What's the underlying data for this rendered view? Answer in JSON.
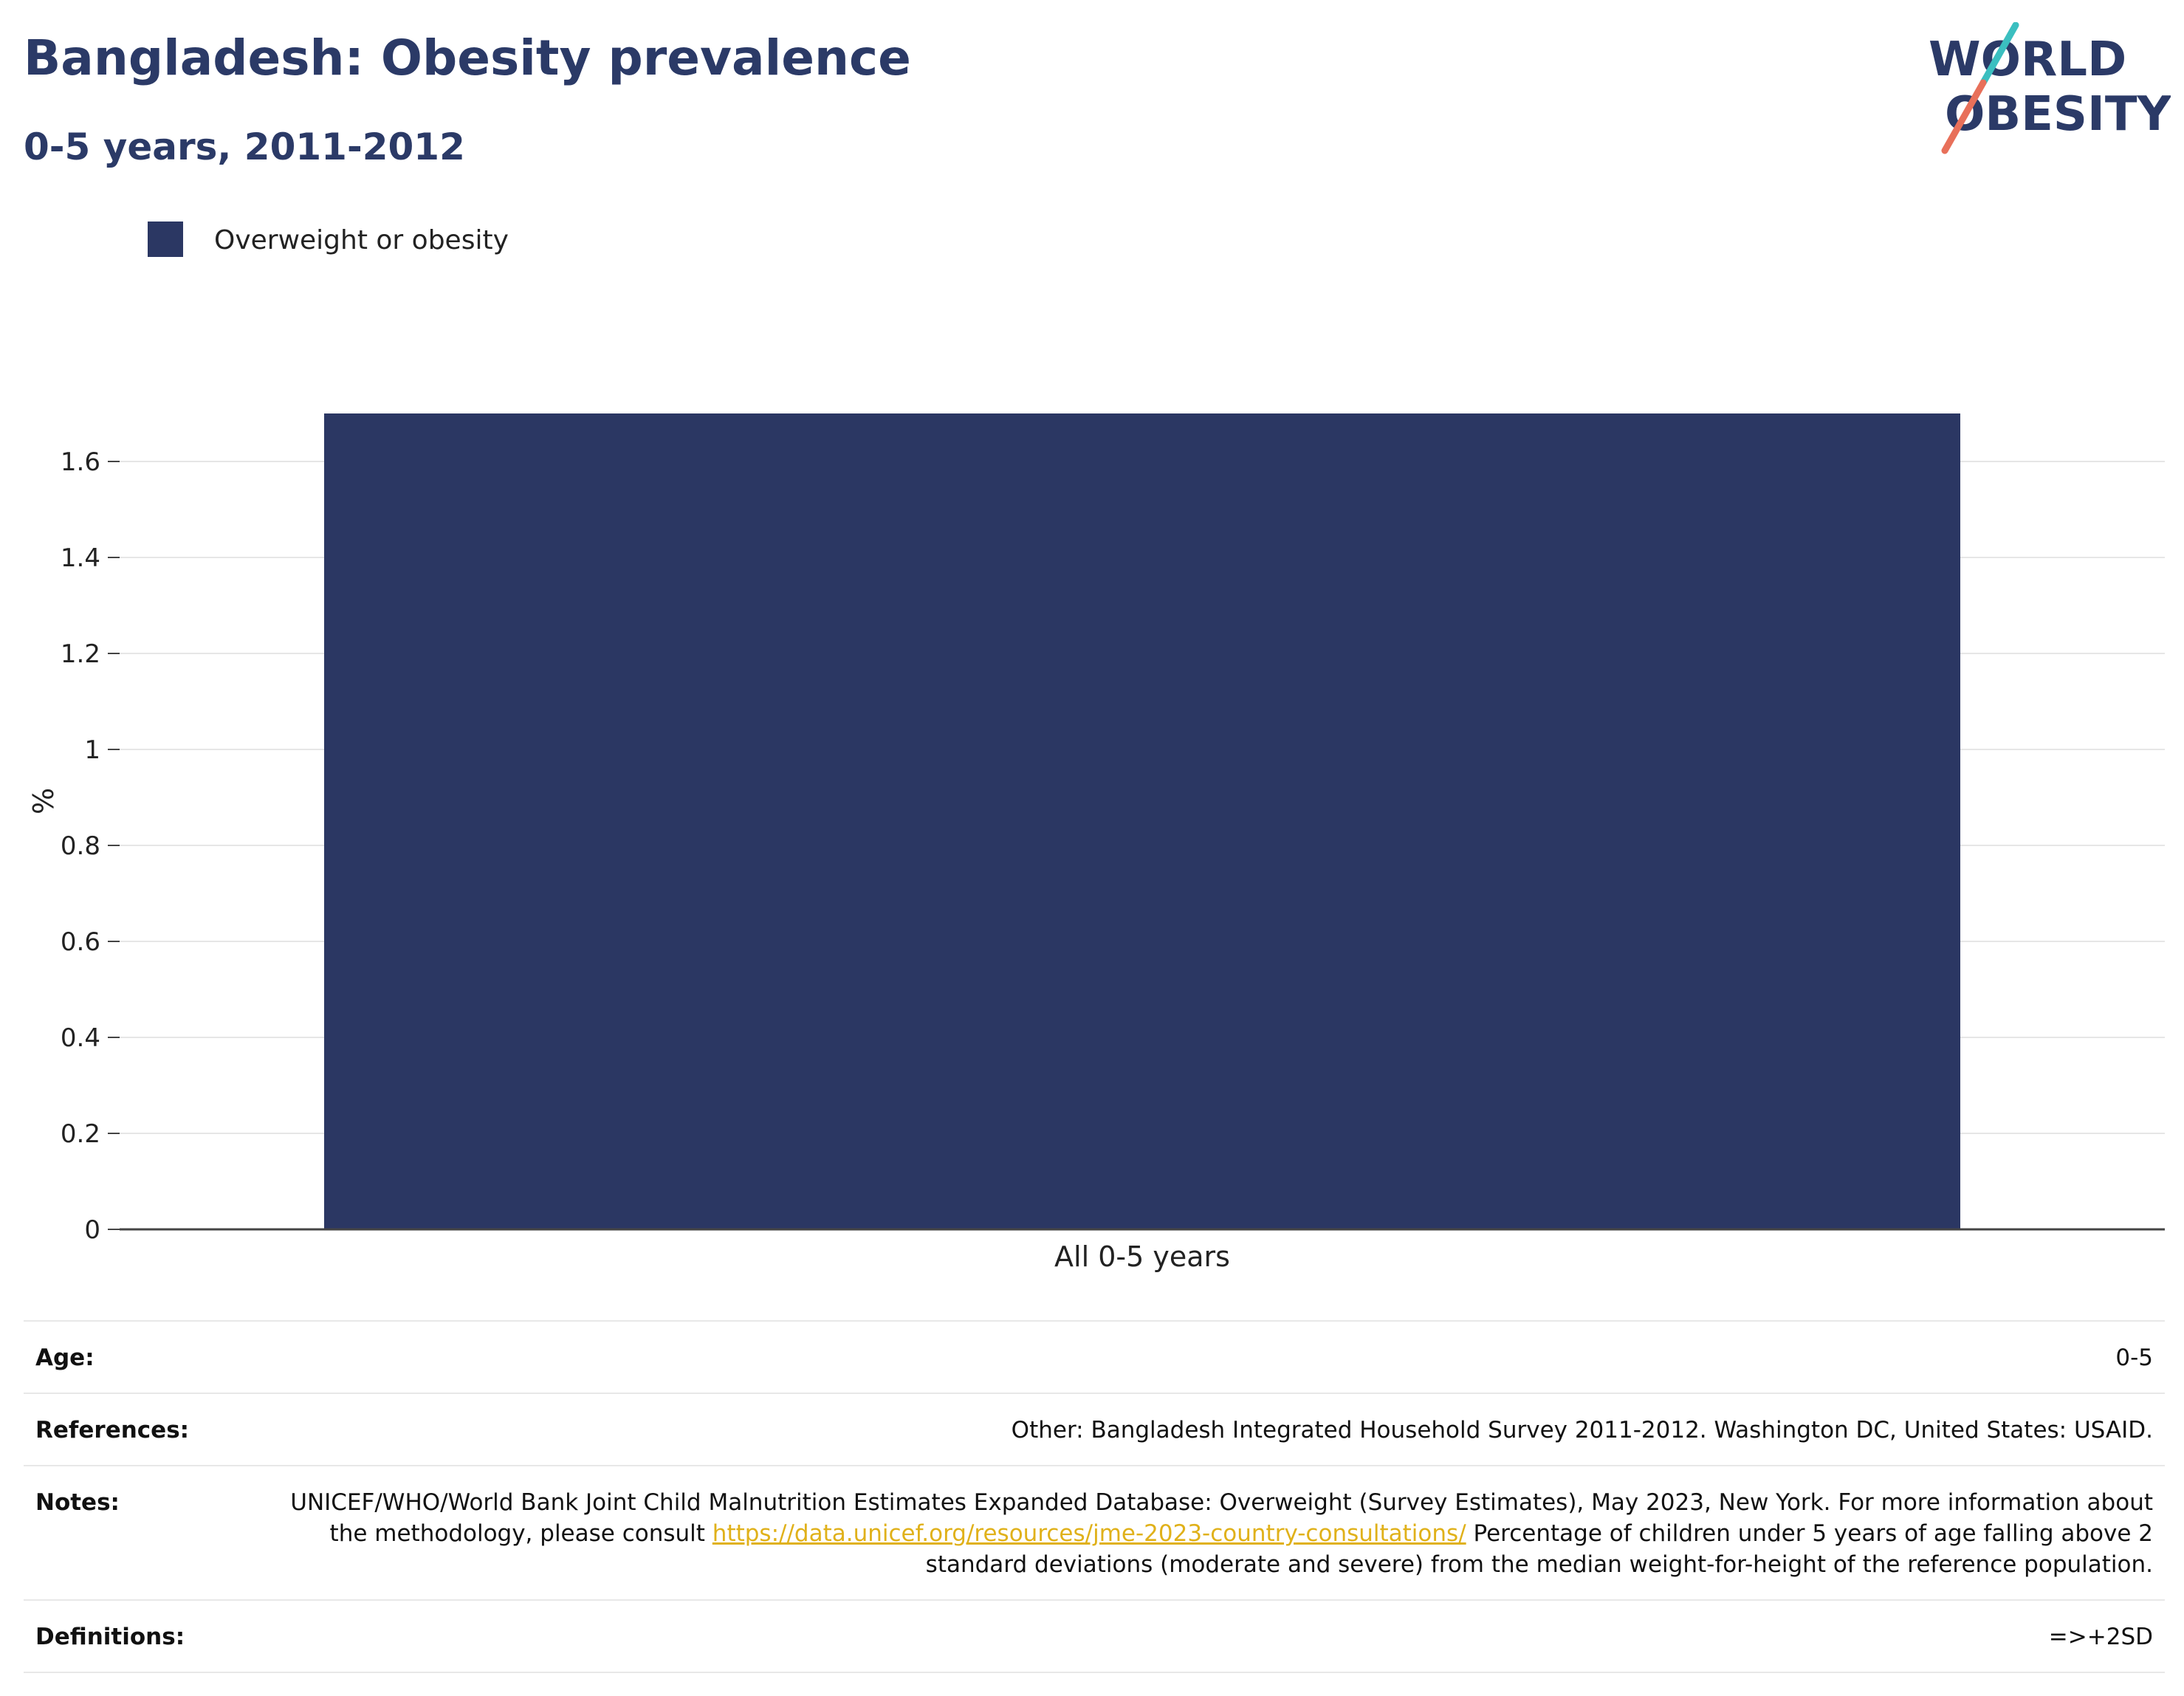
{
  "header": {
    "title": "Bangladesh: Obesity prevalence",
    "subtitle": "0-5 years, 2011-2012"
  },
  "logo": {
    "line1": "WORLD",
    "line2": "OBESITY",
    "colors": {
      "text": "#2b3a67",
      "slash_teal": "#3bbfc0",
      "slash_coral": "#e8705a"
    }
  },
  "chart_data": {
    "type": "bar",
    "categories": [
      "All 0-5 years"
    ],
    "series": [
      {
        "name": "Overweight or obesity",
        "values": [
          1.7
        ],
        "color": "#2b3763"
      }
    ],
    "ylabel": "%",
    "xlabel": "",
    "ylim": [
      0,
      1.7
    ],
    "yticks": [
      0,
      0.2,
      0.4,
      0.6,
      0.8,
      1,
      1.2,
      1.4,
      1.6
    ],
    "ytick_labels": [
      "0",
      "0.2",
      "0.4",
      "0.6",
      "0.8",
      "1",
      "1.2",
      "1.4",
      "1.6"
    ],
    "grid": true,
    "legend_position": "top-left"
  },
  "info": {
    "age": {
      "label": "Age:",
      "value": "0-5"
    },
    "references": {
      "label": "References:",
      "value": "Other: Bangladesh Integrated Household Survey 2011-2012. Washington DC, United States: USAID."
    },
    "notes": {
      "label": "Notes:",
      "text_before": "UNICEF/WHO/World Bank Joint Child Malnutrition Estimates Expanded Database: Overweight (Survey Estimates), May 2023, New York. For more information about the methodology, please consult",
      "link": "https://data.unicef.org/resources/jme-2023-country-consultations/",
      "text_after": "Percentage of children under 5 years of age falling above 2 standard deviations (moderate and severe) from the median weight-for-height of the reference population."
    },
    "definitions": {
      "label": "Definitions:",
      "value": "=>+2SD"
    }
  }
}
